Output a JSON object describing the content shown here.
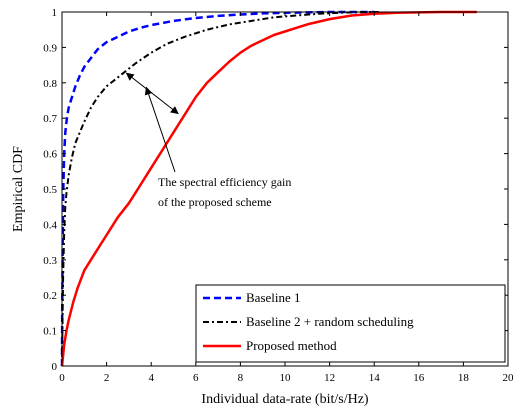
{
  "chart_data": {
    "type": "line",
    "xlabel": "Individual data-rate (bit/s/Hz)",
    "ylabel": "Empirical CDF",
    "xlim": [
      0,
      20
    ],
    "ylim": [
      0,
      1
    ],
    "xticks": [
      "0",
      "2",
      "4",
      "6",
      "8",
      "10",
      "12",
      "14",
      "16",
      "18",
      "20"
    ],
    "yticks": [
      "0",
      "0.1",
      "0.2",
      "0.3",
      "0.4",
      "0.5",
      "0.6",
      "0.7",
      "0.8",
      "0.9",
      "1"
    ],
    "grid": false,
    "legend_position": "bottom-right",
    "annotation": {
      "lines": [
        "The spectral efficiency gain",
        "of the proposed scheme"
      ],
      "arrow_from": [
        2.8,
        0.83
      ],
      "arrow_to": [
        5.3,
        0.71
      ]
    },
    "series": [
      {
        "name": "Baseline 1",
        "color": "#0000ff",
        "style": "dashed",
        "x": [
          0,
          0.01,
          0.03,
          0.06,
          0.1,
          0.15,
          0.22,
          0.3,
          0.45,
          0.6,
          0.8,
          1.0,
          1.3,
          1.6,
          2.0,
          2.5,
          3.0,
          3.5,
          4.0,
          5.0,
          6.0,
          7.0,
          8.0,
          9.0,
          10.0,
          11.0,
          12.0,
          13.0,
          14.0
        ],
        "y": [
          0,
          0.15,
          0.35,
          0.5,
          0.6,
          0.66,
          0.7,
          0.73,
          0.76,
          0.79,
          0.82,
          0.845,
          0.87,
          0.895,
          0.915,
          0.93,
          0.945,
          0.955,
          0.963,
          0.975,
          0.983,
          0.989,
          0.993,
          0.996,
          0.998,
          0.999,
          1,
          1,
          1
        ]
      },
      {
        "name": "Baseline 2 + random scheduling",
        "color": "#000000",
        "style": "dashdot",
        "x": [
          0,
          0.02,
          0.05,
          0.1,
          0.15,
          0.2,
          0.3,
          0.45,
          0.6,
          0.8,
          1.0,
          1.3,
          1.6,
          2.0,
          2.4,
          2.8,
          3.3,
          4.0,
          4.7,
          5.5,
          6.5,
          7.5,
          8.5,
          9.5,
          10.5,
          11.5,
          12.5,
          13.5,
          14.2
        ],
        "y": [
          0,
          0.1,
          0.25,
          0.38,
          0.45,
          0.49,
          0.54,
          0.59,
          0.63,
          0.66,
          0.69,
          0.73,
          0.76,
          0.79,
          0.81,
          0.83,
          0.855,
          0.885,
          0.91,
          0.93,
          0.95,
          0.965,
          0.975,
          0.985,
          0.99,
          0.995,
          0.998,
          1,
          1
        ]
      },
      {
        "name": "Proposed method",
        "color": "#ff0000",
        "style": "solid",
        "x": [
          0,
          0.05,
          0.1,
          0.2,
          0.3,
          0.5,
          0.7,
          1.0,
          1.5,
          2.0,
          2.5,
          3.0,
          3.5,
          4.0,
          4.5,
          5.0,
          5.5,
          6.0,
          6.5,
          7.0,
          7.5,
          8.0,
          8.5,
          9.0,
          9.5,
          10.0,
          10.5,
          11.0,
          12.0,
          13.0,
          14.0,
          15.0,
          16.0,
          17.0,
          18.0,
          18.6
        ],
        "y": [
          0,
          0.03,
          0.06,
          0.1,
          0.13,
          0.18,
          0.22,
          0.27,
          0.32,
          0.37,
          0.42,
          0.46,
          0.51,
          0.56,
          0.61,
          0.66,
          0.71,
          0.76,
          0.8,
          0.83,
          0.86,
          0.885,
          0.905,
          0.92,
          0.935,
          0.945,
          0.955,
          0.965,
          0.98,
          0.99,
          0.995,
          0.998,
          0.999,
          1,
          1,
          1
        ]
      }
    ]
  }
}
